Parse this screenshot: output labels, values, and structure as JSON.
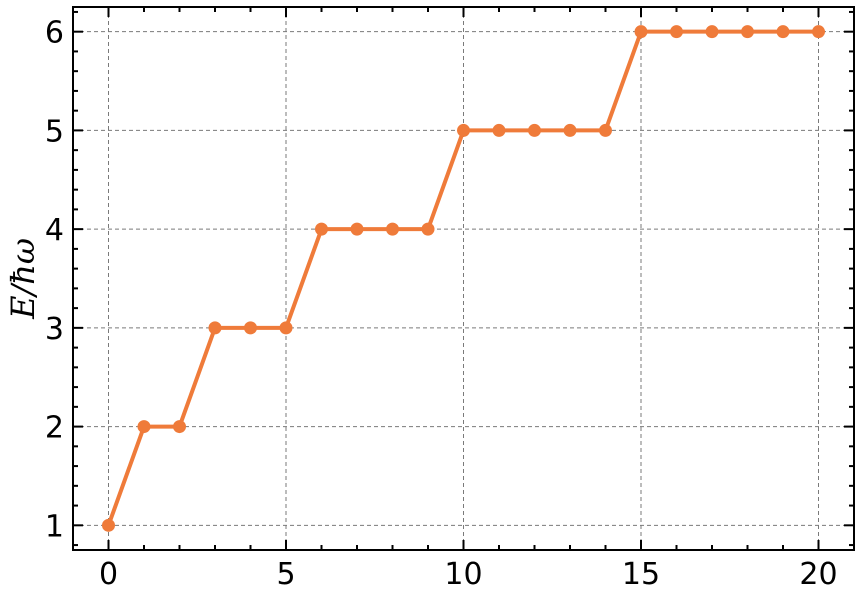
{
  "chart_data": {
    "type": "line",
    "title": "",
    "xlabel": "",
    "ylabel": "E/ħω",
    "xlim": [
      -1,
      21
    ],
    "ylim": [
      0.75,
      6.25
    ],
    "xticks": [
      0,
      5,
      10,
      15,
      20
    ],
    "yticks": [
      1,
      2,
      3,
      4,
      5,
      6
    ],
    "x_minor_step": 1,
    "y_minor_step": 0.2,
    "grid": true,
    "legend": "none",
    "series": [
      {
        "color": "#ef7b3a",
        "marker": "circle",
        "x": [
          0,
          1,
          2,
          3,
          4,
          5,
          6,
          7,
          8,
          9,
          10,
          11,
          12,
          13,
          14,
          15,
          16,
          17,
          18,
          19,
          20
        ],
        "y": [
          1,
          2,
          2,
          3,
          3,
          3,
          4,
          4,
          4,
          4,
          5,
          5,
          5,
          5,
          5,
          6,
          6,
          6,
          6,
          6,
          6
        ]
      }
    ]
  }
}
